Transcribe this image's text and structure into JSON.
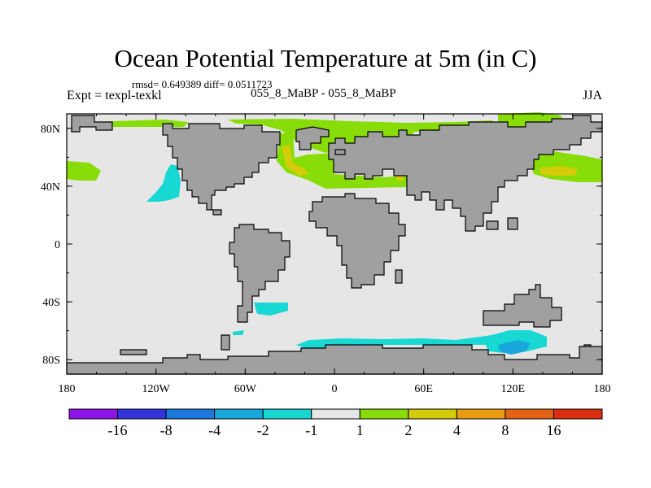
{
  "chart_data": {
    "type": "heatmap",
    "title": "Ocean Potential Temperature at 5m (in C)",
    "stats_line": "rmsd= 0.649389  diff= 0.0511723",
    "left_label": "Expt = texpl-texkl",
    "center_label": "055_8_MaBP - 055_8_MaBP",
    "right_label": "JJA",
    "xlim": [
      -180,
      180
    ],
    "ylim": [
      -90,
      90
    ],
    "x_ticks": [
      {
        "value": -180,
        "label": "180"
      },
      {
        "value": -120,
        "label": "120W"
      },
      {
        "value": -60,
        "label": "60W"
      },
      {
        "value": 0,
        "label": "0"
      },
      {
        "value": 60,
        "label": "60E"
      },
      {
        "value": 120,
        "label": "120E"
      },
      {
        "value": 180,
        "label": "180"
      }
    ],
    "y_ticks": [
      {
        "value": 80,
        "label": "80N"
      },
      {
        "value": 40,
        "label": "40N"
      },
      {
        "value": 0,
        "label": "0"
      },
      {
        "value": -40,
        "label": "40S"
      },
      {
        "value": -80,
        "label": "80S"
      }
    ],
    "colorbar": {
      "levels": [
        "-16",
        "-8",
        "-4",
        "-2",
        "-1",
        "1",
        "2",
        "4",
        "8",
        "16"
      ],
      "colors": [
        "#8e14e8",
        "#3434dc",
        "#1c78dc",
        "#18a8dc",
        "#18d8d4",
        "#e6e6e6",
        "#88dc08",
        "#d4cc08",
        "#ec9c10",
        "#e46414",
        "#dc2c10"
      ]
    },
    "colors": {
      "land": "#a0a0a0",
      "ocean_neutral": "#e6e6e6",
      "coast": "#000000"
    }
  }
}
